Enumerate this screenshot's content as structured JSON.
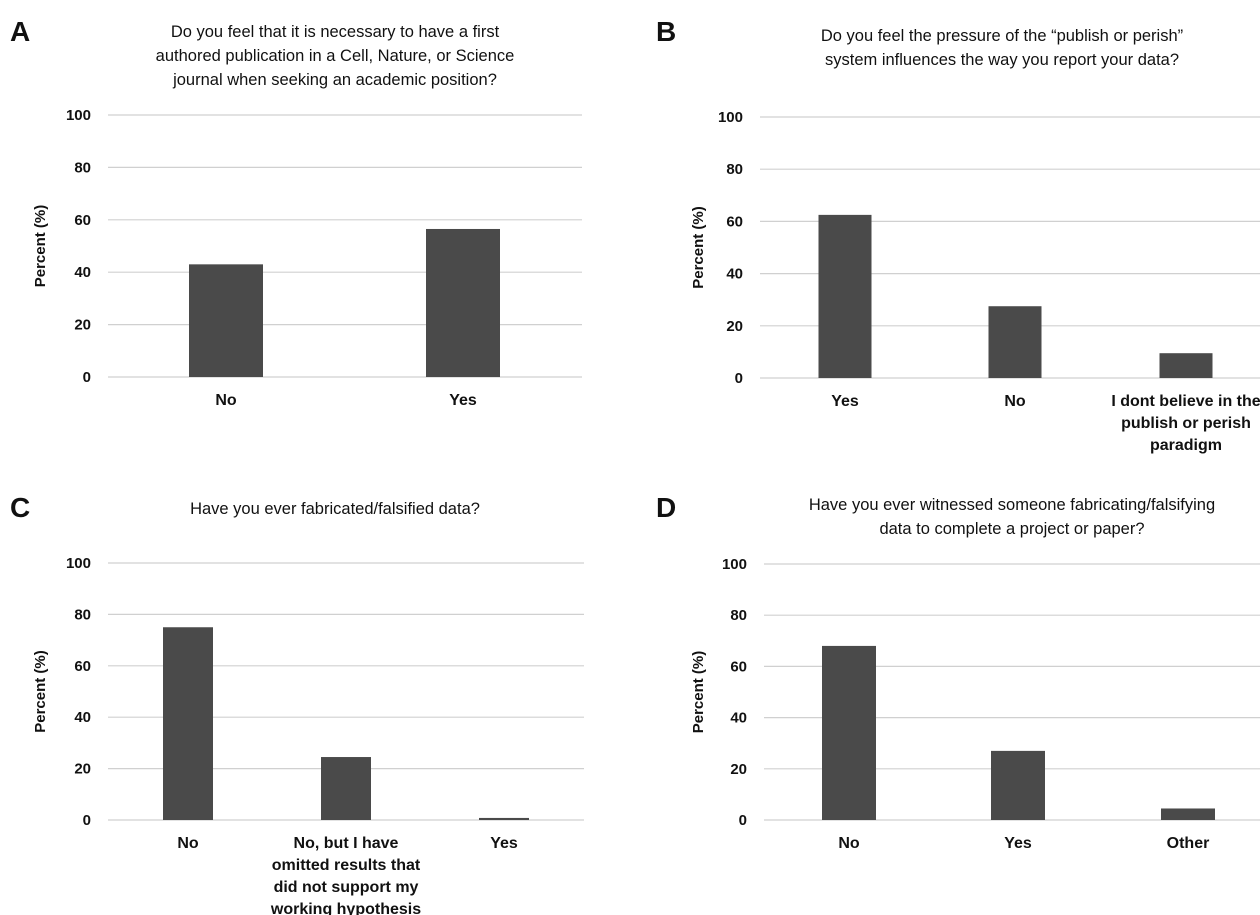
{
  "chart_data": [
    {
      "type": "bar",
      "panel": "A",
      "title": [
        "Do you feel that it is necessary to have a first",
        "authored publication in a Cell, Nature, or Science",
        "journal when seeking an academic position?"
      ],
      "categories": [
        [
          "No"
        ],
        [
          "Yes"
        ]
      ],
      "values": [
        43,
        56.5
      ],
      "ylabel": "Percent (%)",
      "xlabel": "",
      "ylim": [
        0,
        100
      ],
      "yticks": [
        "0",
        "20",
        "40",
        "60",
        "80",
        "100"
      ],
      "grid": true,
      "bar_color": "#4a4a4a",
      "grid_color": "#d0d0d0"
    },
    {
      "type": "bar",
      "panel": "B",
      "title": [
        "Do you feel the pressure of the “publish or perish”",
        "system influences the way you report your data?"
      ],
      "categories": [
        [
          "Yes"
        ],
        [
          "No"
        ],
        [
          "I dont believe in the",
          "publish or perish",
          "paradigm"
        ]
      ],
      "values": [
        62.5,
        27.5,
        9.5
      ],
      "ylabel": "Percent (%)",
      "xlabel": "",
      "ylim": [
        0,
        100
      ],
      "yticks": [
        "0",
        "20",
        "40",
        "60",
        "80",
        "100"
      ],
      "grid": true,
      "bar_color": "#4a4a4a",
      "grid_color": "#d0d0d0"
    },
    {
      "type": "bar",
      "panel": "C",
      "title": [
        "Have you ever fabricated/falsified data?"
      ],
      "categories": [
        [
          "No"
        ],
        [
          "No, but I have",
          "omitted results that",
          "did not support my",
          "working hypothesis"
        ],
        [
          "Yes"
        ]
      ],
      "values": [
        75,
        24.5,
        0.8
      ],
      "ylabel": "Percent (%)",
      "xlabel": "",
      "ylim": [
        0,
        100
      ],
      "yticks": [
        "0",
        "20",
        "40",
        "60",
        "80",
        "100"
      ],
      "grid": true,
      "bar_color": "#4a4a4a",
      "grid_color": "#d0d0d0"
    },
    {
      "type": "bar",
      "panel": "D",
      "title": [
        "Have you ever witnessed someone fabricating/falsifying",
        "data to complete a project or paper?"
      ],
      "categories": [
        [
          "No"
        ],
        [
          "Yes"
        ],
        [
          "Other"
        ]
      ],
      "values": [
        68,
        27,
        4.5
      ],
      "ylabel": "Percent (%)",
      "xlabel": "",
      "ylim": [
        0,
        100
      ],
      "yticks": [
        "0",
        "20",
        "40",
        "60",
        "80",
        "100"
      ],
      "grid": true,
      "bar_color": "#4a4a4a",
      "grid_color": "#d0d0d0"
    }
  ]
}
